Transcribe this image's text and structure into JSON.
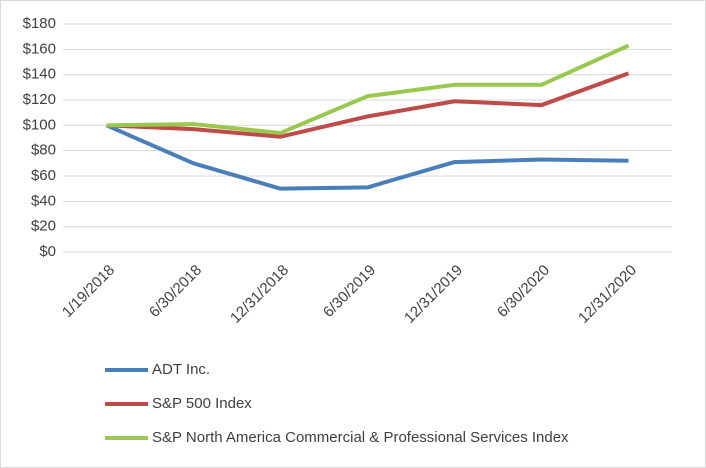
{
  "chart_data": {
    "type": "line",
    "categories": [
      "1/19/2018",
      "6/30/2018",
      "12/31/2018",
      "6/30/2019",
      "12/31/2019",
      "6/30/2020",
      "12/31/2020"
    ],
    "series": [
      {
        "name": "ADT Inc.",
        "color": "#4a7ebb",
        "values": [
          100,
          70,
          50,
          51,
          71,
          73,
          72
        ]
      },
      {
        "name": "S&P 500 Index",
        "color": "#be4b48",
        "values": [
          100,
          97,
          91,
          107,
          119,
          116,
          141
        ]
      },
      {
        "name": "S&P North America Commercial & Professional Services Index",
        "color": "#98c84c",
        "values": [
          100,
          101,
          94,
          123,
          132,
          132,
          163
        ]
      }
    ],
    "ylim": [
      0,
      180
    ],
    "yticks": [
      {
        "value": 0,
        "label": "$0"
      },
      {
        "value": 20,
        "label": "$20"
      },
      {
        "value": 40,
        "label": "$40"
      },
      {
        "value": 60,
        "label": "$60"
      },
      {
        "value": 80,
        "label": "$80"
      },
      {
        "value": 100,
        "label": "$100"
      },
      {
        "value": 120,
        "label": "$120"
      },
      {
        "value": 140,
        "label": "$140"
      },
      {
        "value": 160,
        "label": "$160"
      },
      {
        "value": 180,
        "label": "$180"
      }
    ],
    "grid": true
  }
}
